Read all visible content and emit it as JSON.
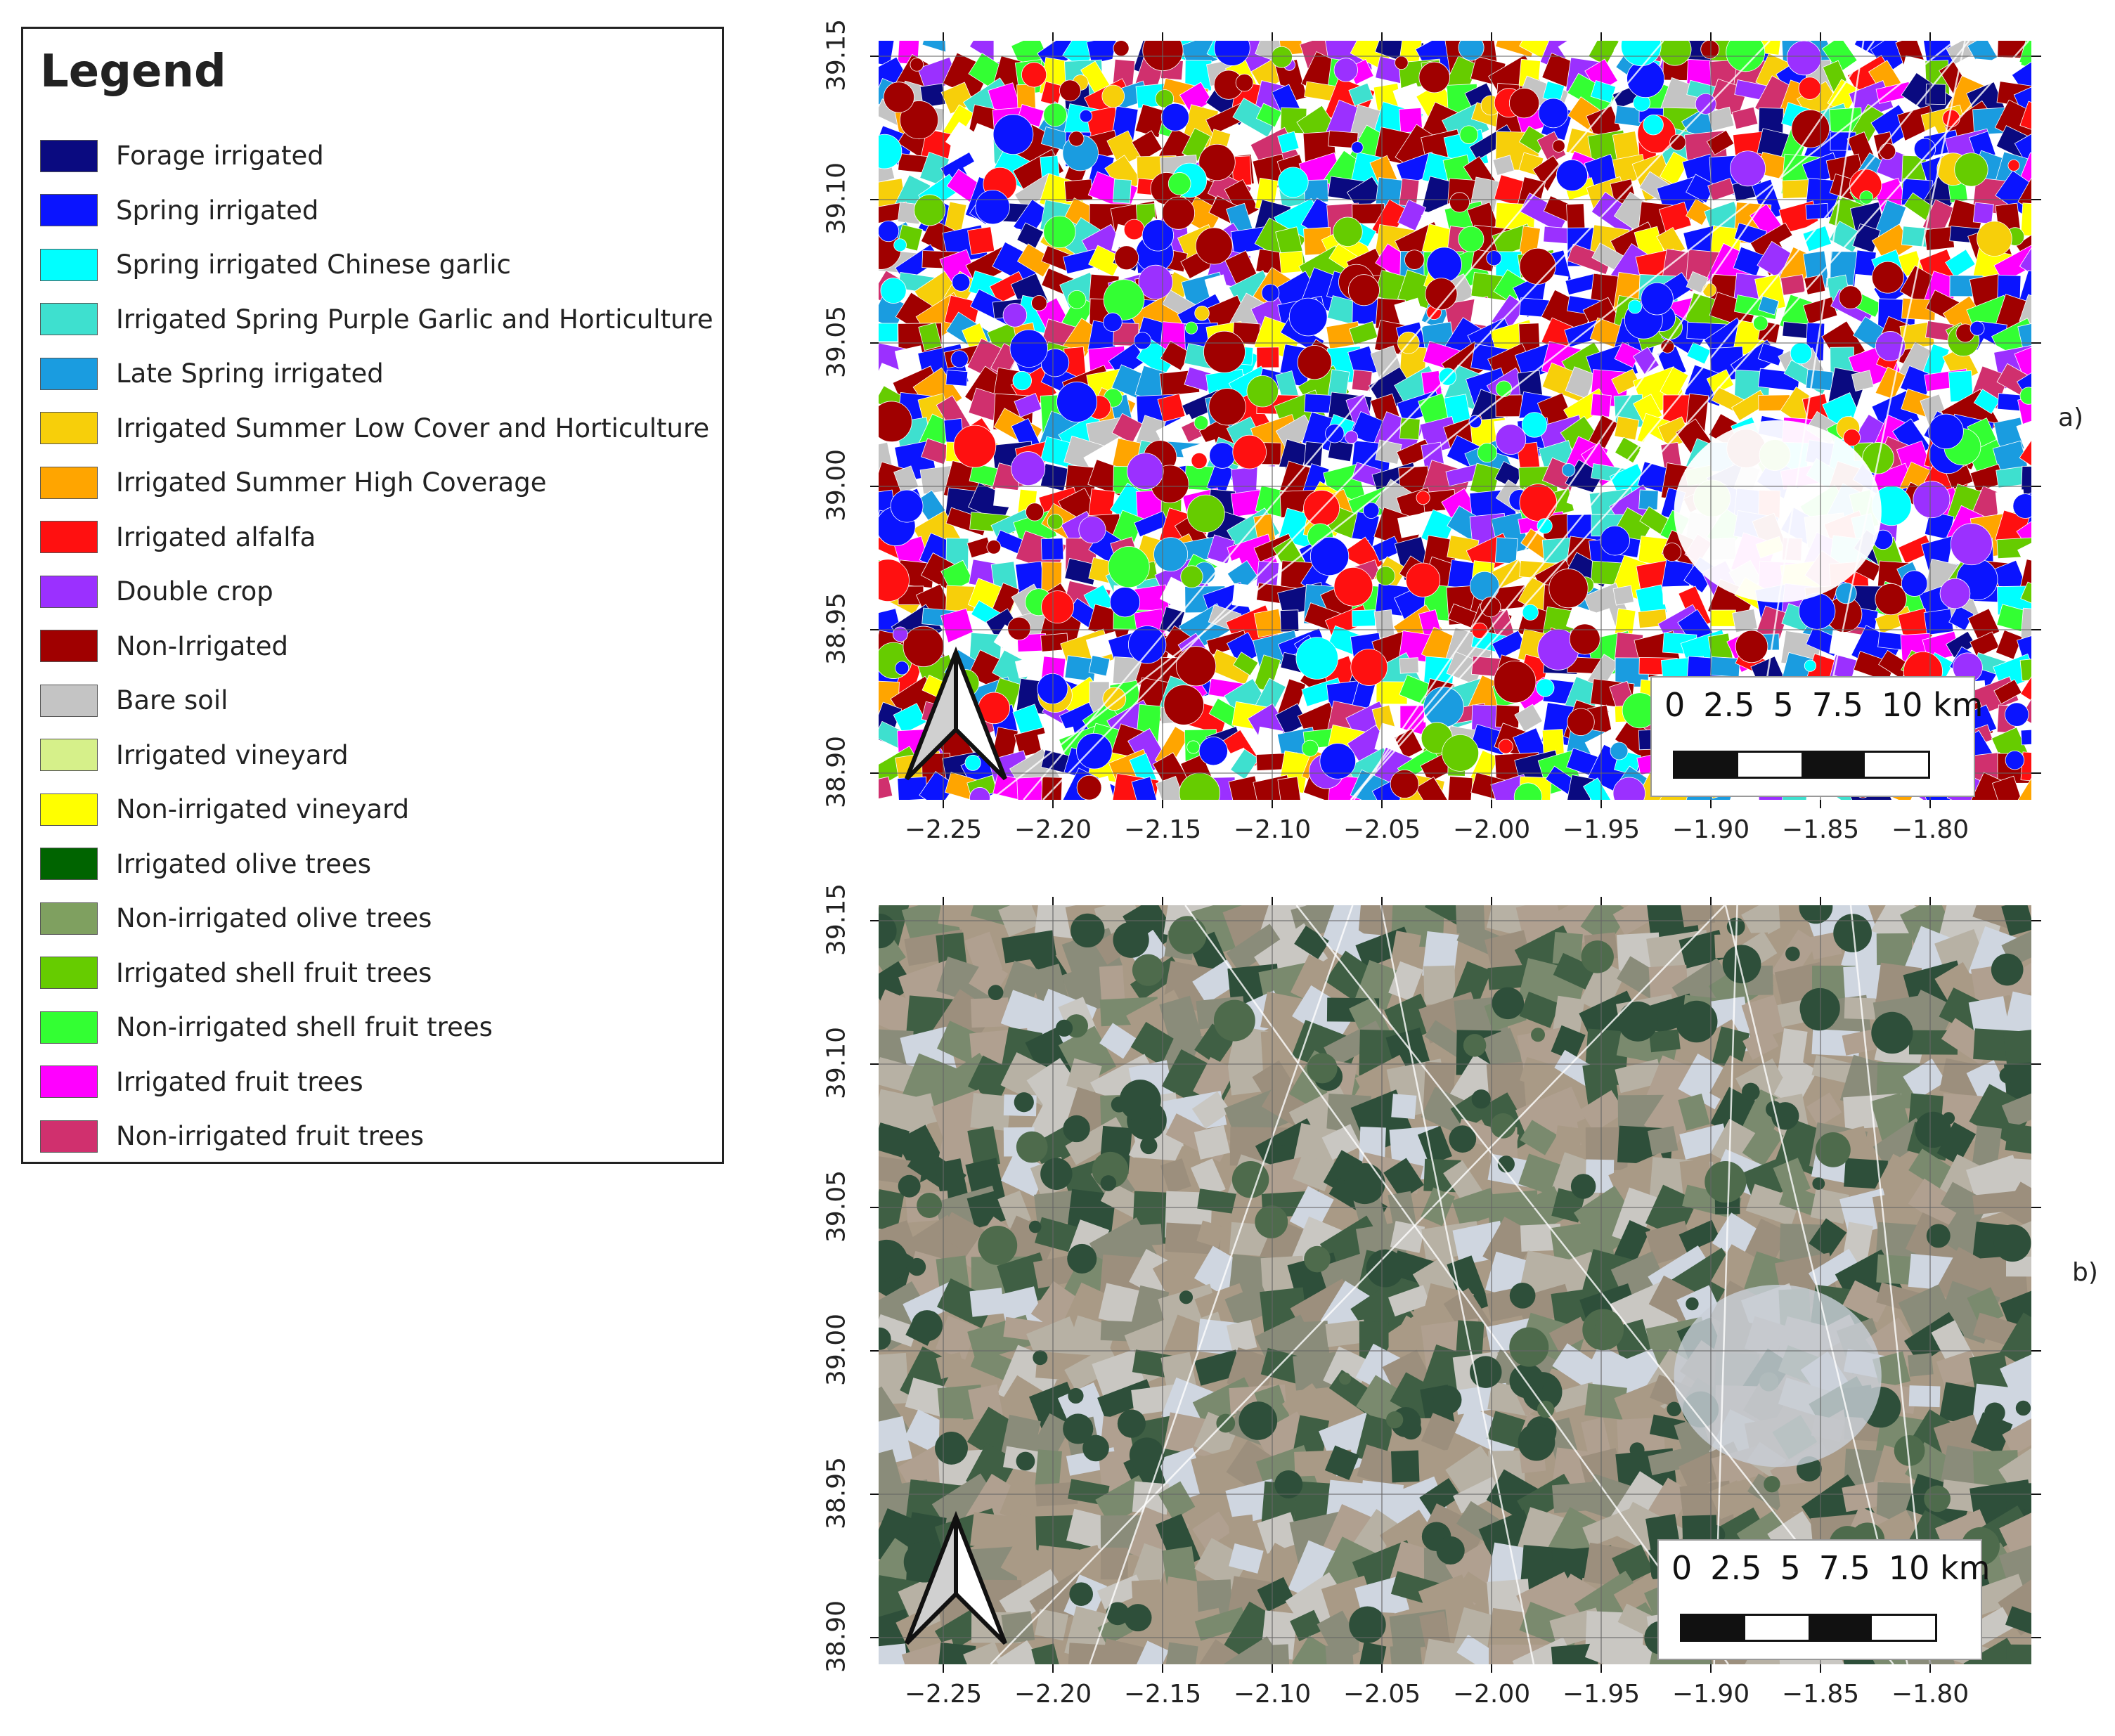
{
  "legend": {
    "title": "Legend",
    "items": [
      {
        "label": "Forage irrigated",
        "color": "#0a0a80"
      },
      {
        "label": "Spring irrigated",
        "color": "#0a14ff"
      },
      {
        "label": "Spring irrigated Chinese garlic",
        "color": "#00ffff"
      },
      {
        "label": "Irrigated Spring Purple Garlic and Horticulture",
        "color": "#3ee0cf"
      },
      {
        "label": "Late Spring irrigated",
        "color": "#1a9ce0"
      },
      {
        "label": "Irrigated Summer Low Cover and Horticulture",
        "color": "#f7cf0a"
      },
      {
        "label": "Irrigated Summer High Coverage",
        "color": "#ffa500"
      },
      {
        "label": "Irrigated alfalfa",
        "color": "#ff1010"
      },
      {
        "label": "Double crop",
        "color": "#9b30ff"
      },
      {
        "label": "Non-Irrigated",
        "color": "#a00000"
      },
      {
        "label": "Bare soil",
        "color": "#c4c4c4"
      },
      {
        "label": "Irrigated vineyard",
        "color": "#d6f08a"
      },
      {
        "label": "Non-irrigated vineyard",
        "color": "#ffff00"
      },
      {
        "label": "Irrigated olive trees",
        "color": "#006400"
      },
      {
        "label": "Non-irrigated olive trees",
        "color": "#7fa060"
      },
      {
        "label": "Irrigated shell fruit trees",
        "color": "#66cc00"
      },
      {
        "label": "Non-irrigated shell fruit trees",
        "color": "#33ff33"
      },
      {
        "label": "Irrigated fruit trees",
        "color": "#ff00ff"
      },
      {
        "label": "Non-irrigated fruit trees",
        "color": "#d0306e"
      }
    ]
  },
  "maps": [
    {
      "panel_label": "a)",
      "y_ticks": [
        "39.15",
        "39.10",
        "39.05",
        "39.00",
        "38.95",
        "38.90"
      ],
      "x_ticks": [
        "−2.25",
        "−2.20",
        "−2.15",
        "−2.10",
        "−2.05",
        "−2.00",
        "−1.95",
        "−1.90",
        "−1.85",
        "−1.80"
      ],
      "scale_labels": [
        "0",
        "2.5",
        "5",
        "7.5",
        "10 km"
      ],
      "icon": "north-arrow-icon"
    },
    {
      "panel_label": "b)",
      "y_ticks": [
        "39.15",
        "39.10",
        "39.05",
        "39.00",
        "38.95",
        "38.90"
      ],
      "x_ticks": [
        "−2.25",
        "−2.20",
        "−2.15",
        "−2.10",
        "−2.05",
        "−2.00",
        "−1.95",
        "−1.90",
        "−1.85",
        "−1.80"
      ],
      "scale_labels": [
        "0",
        "2.5",
        "5",
        "7.5",
        "10 km"
      ],
      "icon": "north-arrow-icon"
    }
  ],
  "satellite_palette": [
    "#9c8f7d",
    "#a99a86",
    "#8a8c7a",
    "#b7b1a4",
    "#c9c7c2",
    "#3f5f44",
    "#2e4f3a",
    "#7a8a6e",
    "#cfd6e0",
    "#b0a090"
  ]
}
